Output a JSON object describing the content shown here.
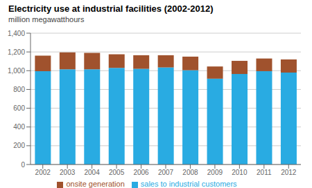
{
  "chart_data": {
    "type": "bar",
    "title": "Electricity use at industrial facilities (2002-2012)",
    "subtitle": "million megawatthours",
    "categories": [
      "2002",
      "2003",
      "2004",
      "2005",
      "2006",
      "2007",
      "2008",
      "2009",
      "2010",
      "2011",
      "2012"
    ],
    "series": [
      {
        "name": "sales to industrial customers",
        "color": "#29ABE2",
        "values": [
          995,
          1015,
          1015,
          1030,
          1020,
          1035,
          1005,
          915,
          965,
          995,
          980
        ]
      },
      {
        "name": "onsite generation",
        "color": "#A0522D",
        "values": [
          165,
          180,
          175,
          145,
          145,
          130,
          145,
          130,
          140,
          135,
          140
        ]
      }
    ],
    "stacked": true,
    "ylim": [
      0,
      1400
    ],
    "yticks": [
      0,
      200,
      400,
      600,
      800,
      {
        "value": 1000,
        "label": "1,000"
      },
      {
        "value": 1200,
        "label": "1,200"
      },
      {
        "value": 1400,
        "label": "1,400"
      }
    ],
    "grid": true,
    "legend": "bottom"
  }
}
